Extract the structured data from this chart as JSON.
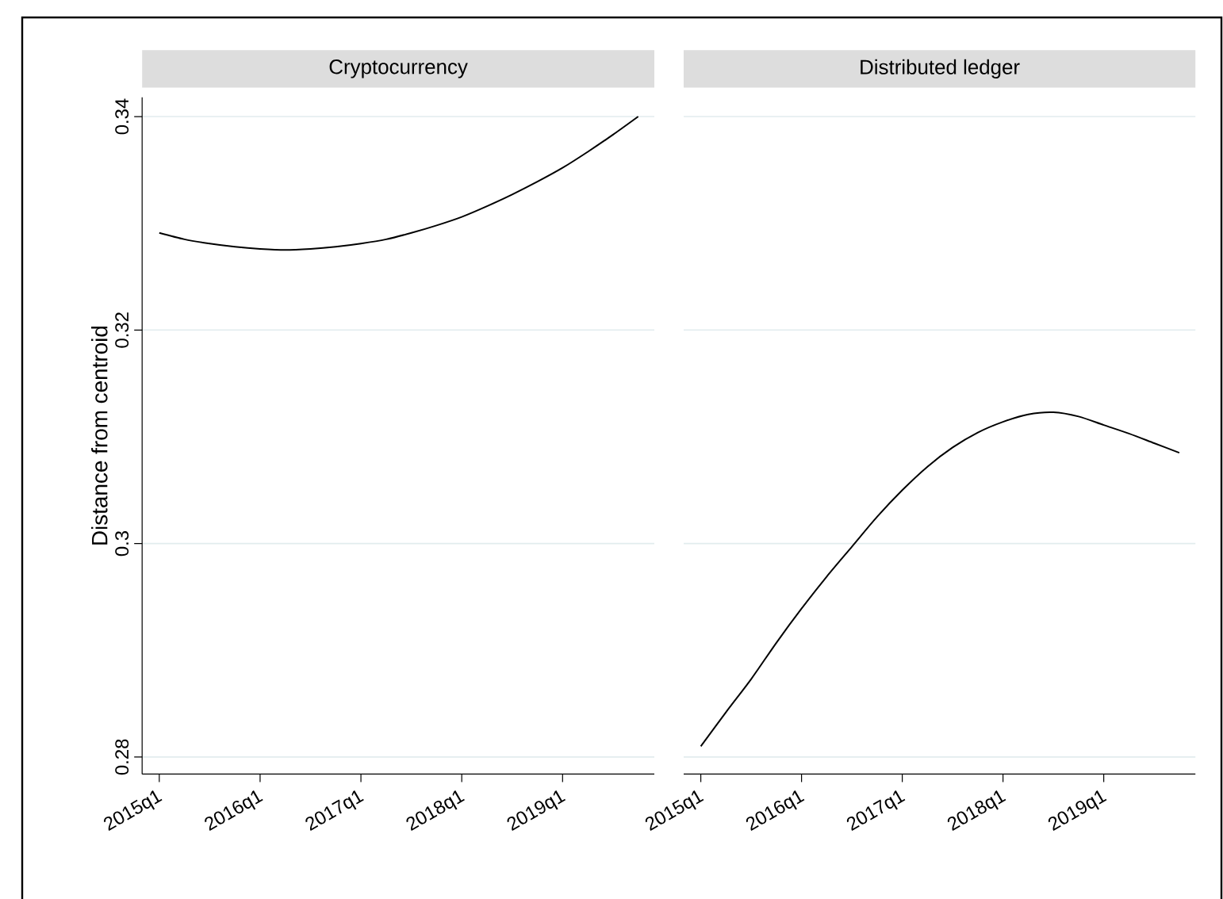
{
  "chart_data": [
    {
      "type": "line",
      "title": "Cryptocurrency",
      "ylabel": "Distance from centroid",
      "grid": "y",
      "categories": [
        "2015q1",
        null,
        null,
        null,
        "2016q1",
        null,
        null,
        null,
        "2017q1",
        null,
        null,
        null,
        "2018q1",
        null,
        null,
        null,
        "2019q1",
        null,
        null,
        null
      ],
      "series": [
        {
          "color": "#000000",
          "values": [
            0.3291,
            0.3285,
            0.3281,
            0.3278,
            0.3276,
            0.3275,
            0.3276,
            0.3278,
            0.3281,
            0.3285,
            0.3291,
            0.3298,
            0.3306,
            0.3316,
            0.3327,
            0.3339,
            0.3352,
            0.3367,
            0.3383,
            0.34
          ]
        }
      ],
      "ylim": [
        0.2784,
        0.3418
      ],
      "yticks": [
        0.28,
        0.3,
        0.32,
        0.34
      ]
    },
    {
      "type": "line",
      "title": "Distributed ledger",
      "grid": "y",
      "tick_labels": "x",
      "categories": [
        "2015q1",
        null,
        null,
        null,
        "2016q1",
        null,
        null,
        null,
        "2017q1",
        null,
        null,
        null,
        "2018q1",
        null,
        null,
        null,
        "2019q1",
        null,
        null,
        null
      ],
      "series": [
        {
          "color": "#000000",
          "values": [
            0.281,
            0.2842,
            0.2873,
            0.2907,
            0.2939,
            0.2969,
            0.2997,
            0.3025,
            0.305,
            0.3072,
            0.309,
            0.3104,
            0.3114,
            0.3121,
            0.3123,
            0.3119,
            0.3111,
            0.3103,
            0.3094,
            0.3085
          ]
        }
      ],
      "ylim": [
        0.2784,
        0.34
      ],
      "yticks": [
        0.28,
        0.3,
        0.32,
        0.34
      ]
    }
  ]
}
